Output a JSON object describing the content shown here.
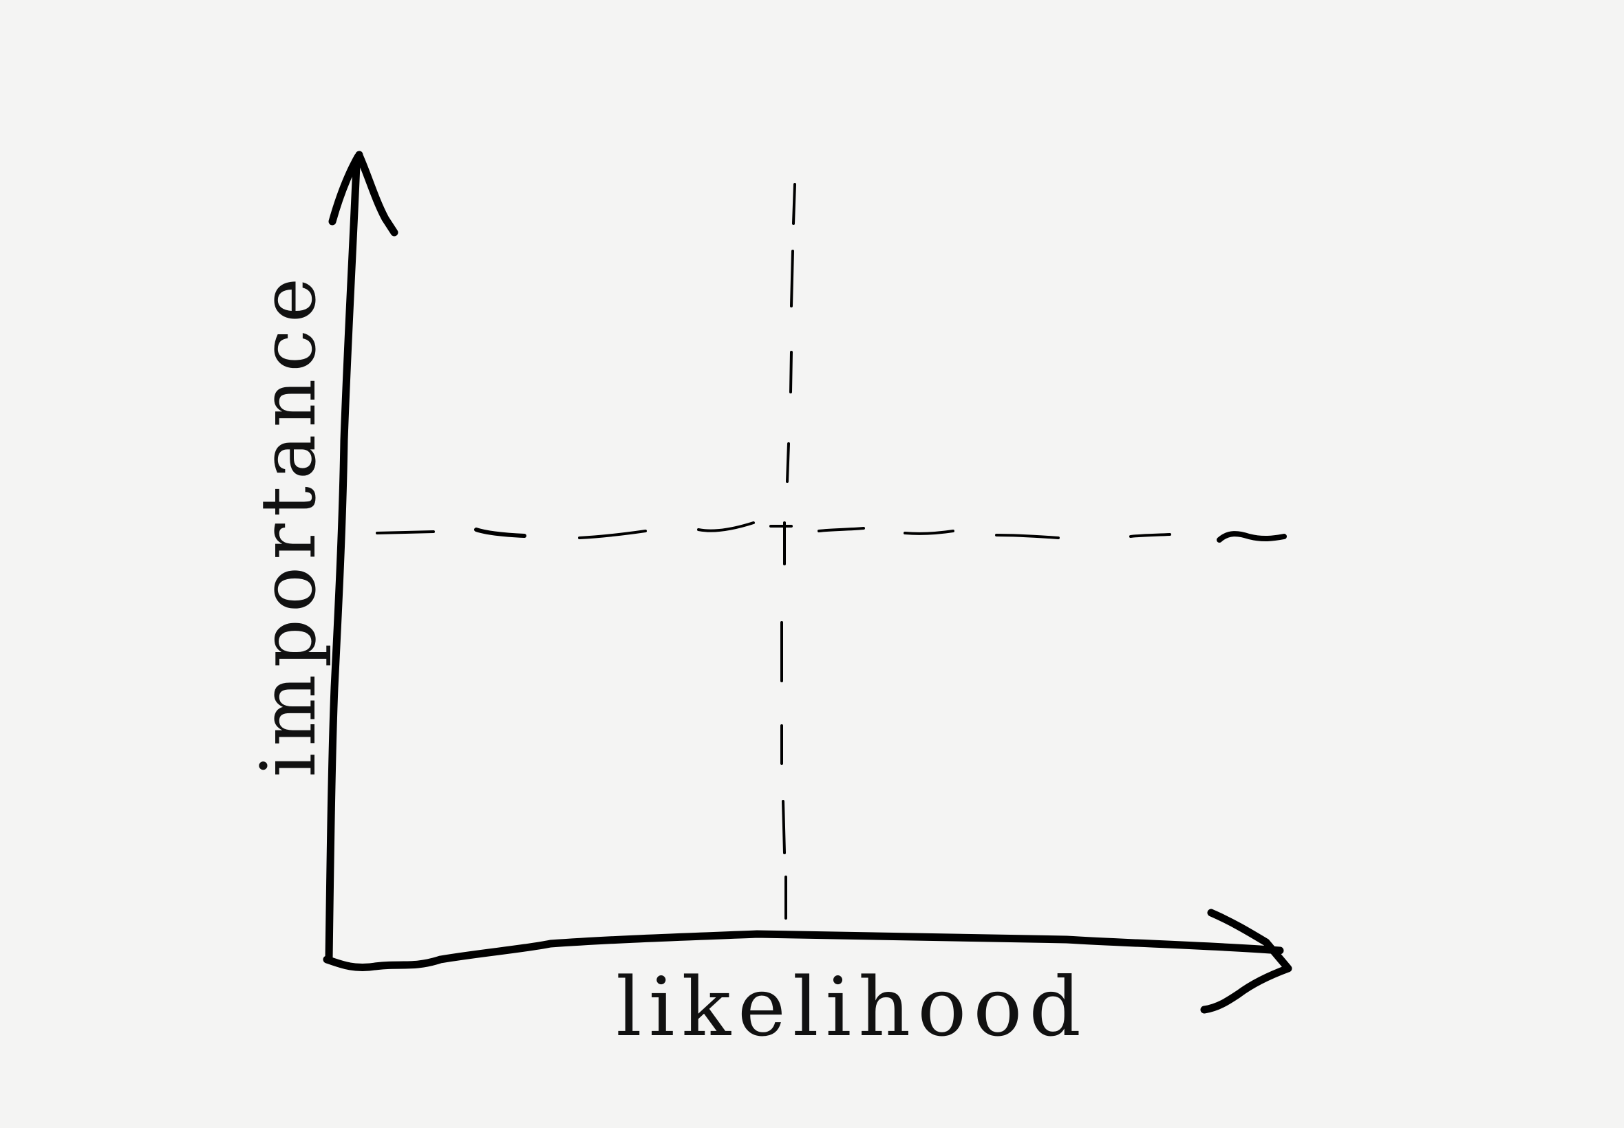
{
  "diagram": {
    "type": "2x2 matrix sketch",
    "x_axis_label": "likelihood",
    "y_axis_label": "importance"
  }
}
